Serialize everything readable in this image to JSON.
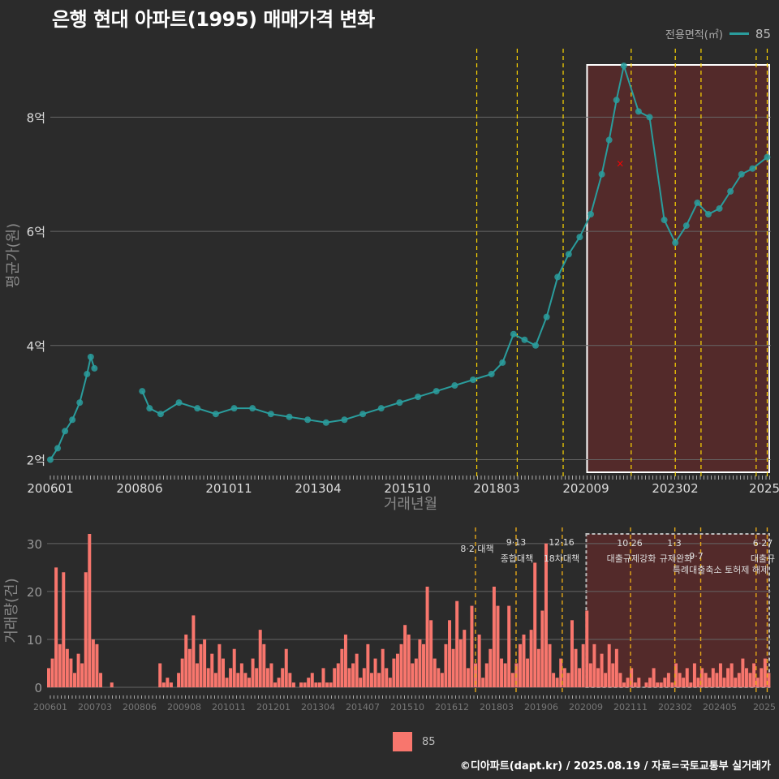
{
  "title": "은행 현대 아파트(1995) 매매가격 변화",
  "legend_top": {
    "title": "전용면적(㎡)",
    "value": "85"
  },
  "legend_bottom": {
    "value": "85"
  },
  "footer": "©디아파트(dapt.kr) / 2025.08.19 / 자료=국토교통부 실거래가",
  "colors": {
    "price": "#2a9d9d",
    "volume": "#f8766d",
    "policy": "#ffd700",
    "highlight_fill": "#5a2a2a",
    "marker": "#ff0000"
  },
  "chart_data": [
    {
      "type": "scatter",
      "title": "은행 현대 아파트(1995) 매매가격 변화",
      "xlabel": "거래년월",
      "ylabel": "평균가(원)",
      "x_ticks": [
        "200601",
        "200806",
        "201011",
        "201304",
        "201510",
        "201803",
        "202009",
        "202302",
        "2025"
      ],
      "y_ticks": [
        2,
        4,
        6,
        8
      ],
      "y_tick_labels": [
        "2억",
        "4억",
        "6억",
        "8억"
      ],
      "ylim": [
        1.95,
        9.2
      ],
      "xlim": [
        2006.0,
        2025.6
      ],
      "series": [
        {
          "name": "85",
          "points": [
            [
              2006.0,
              2.0
            ],
            [
              2006.2,
              2.2
            ],
            [
              2006.4,
              2.5
            ],
            [
              2006.6,
              2.7
            ],
            [
              2006.8,
              3.0
            ],
            [
              2007.0,
              3.5
            ],
            [
              2007.1,
              3.8
            ],
            [
              2007.2,
              3.6
            ],
            [
              2008.5,
              3.2
            ],
            [
              2008.7,
              2.9
            ],
            [
              2009.0,
              2.8
            ],
            [
              2009.5,
              3.0
            ],
            [
              2010.0,
              2.9
            ],
            [
              2010.5,
              2.8
            ],
            [
              2011.0,
              2.9
            ],
            [
              2011.5,
              2.9
            ],
            [
              2012.0,
              2.8
            ],
            [
              2012.5,
              2.75
            ],
            [
              2013.0,
              2.7
            ],
            [
              2013.5,
              2.65
            ],
            [
              2014.0,
              2.7
            ],
            [
              2014.5,
              2.8
            ],
            [
              2015.0,
              2.9
            ],
            [
              2015.5,
              3.0
            ],
            [
              2016.0,
              3.1
            ],
            [
              2016.5,
              3.2
            ],
            [
              2017.0,
              3.3
            ],
            [
              2017.5,
              3.4
            ],
            [
              2018.0,
              3.5
            ],
            [
              2018.3,
              3.7
            ],
            [
              2018.6,
              4.2
            ],
            [
              2018.9,
              4.1
            ],
            [
              2019.2,
              4.0
            ],
            [
              2019.5,
              4.5
            ],
            [
              2019.8,
              5.2
            ],
            [
              2020.1,
              5.6
            ],
            [
              2020.4,
              5.9
            ],
            [
              2020.7,
              6.3
            ],
            [
              2021.0,
              7.0
            ],
            [
              2021.2,
              7.6
            ],
            [
              2021.4,
              8.3
            ],
            [
              2021.6,
              8.9
            ],
            [
              2022.0,
              8.1
            ],
            [
              2022.3,
              8.0
            ],
            [
              2022.7,
              6.2
            ],
            [
              2023.0,
              5.8
            ],
            [
              2023.3,
              6.1
            ],
            [
              2023.6,
              6.5
            ],
            [
              2023.9,
              6.3
            ],
            [
              2024.2,
              6.4
            ],
            [
              2024.5,
              6.7
            ],
            [
              2024.8,
              7.0
            ],
            [
              2025.1,
              7.1
            ],
            [
              2025.5,
              7.3
            ]
          ]
        }
      ],
      "policy_lines_x": [
        2017.6,
        2018.7,
        2019.95,
        2021.8,
        2023.0,
        2023.7,
        2025.2,
        2025.5
      ],
      "highlight_x": [
        2020.6,
        2025.6
      ],
      "marker_x": [
        2021.5
      ],
      "marker_y": [
        7.2
      ]
    },
    {
      "type": "bar",
      "ylabel": "거래량(건)",
      "x_ticks": [
        "200601",
        "200703",
        "200806",
        "200908",
        "201011",
        "201201",
        "201304",
        "201407",
        "201510",
        "201612",
        "201803",
        "201906",
        "202009",
        "202111",
        "202302",
        "202405",
        "2025"
      ],
      "y_ticks": [
        0,
        10,
        20,
        30
      ],
      "ylim": [
        0,
        32
      ],
      "xlim": [
        2006.0,
        2025.6
      ],
      "series": [
        {
          "name": "85",
          "values": [
            4,
            6,
            25,
            9,
            24,
            8,
            6,
            3,
            7,
            5,
            24,
            32,
            10,
            9,
            3,
            0,
            0,
            1,
            0,
            0,
            0,
            0,
            0,
            0,
            0,
            0,
            0,
            0,
            0,
            0,
            5,
            1,
            2,
            1,
            0,
            3,
            6,
            11,
            8,
            15,
            5,
            9,
            10,
            4,
            7,
            3,
            9,
            6,
            2,
            4,
            8,
            3,
            5,
            3,
            2,
            6,
            4,
            12,
            9,
            4,
            5,
            1,
            2,
            4,
            8,
            3,
            1,
            0,
            1,
            1,
            2,
            3,
            1,
            1,
            4,
            1,
            1,
            4,
            5,
            8,
            11,
            4,
            5,
            7,
            2,
            4,
            9,
            3,
            6,
            3,
            8,
            4,
            2,
            6,
            7,
            9,
            13,
            11,
            5,
            6,
            10,
            9,
            21,
            14,
            6,
            4,
            3,
            9,
            14,
            8,
            18,
            10,
            12,
            4,
            17,
            5,
            11,
            2,
            5,
            8,
            21,
            17,
            6,
            5,
            17,
            3,
            5,
            9,
            11,
            6,
            12,
            26,
            8,
            16,
            30,
            9,
            3,
            2,
            6,
            4,
            3,
            14,
            8,
            4,
            9,
            16,
            5,
            9,
            4,
            7,
            3,
            9,
            5,
            8,
            3,
            1,
            2,
            4,
            1,
            2,
            0,
            1,
            2,
            4,
            1,
            1,
            2,
            3,
            1,
            5,
            3,
            2,
            4,
            1,
            5,
            2,
            4,
            3,
            2,
            4,
            3,
            5,
            2,
            4,
            5,
            2,
            3,
            6,
            4,
            3,
            5,
            2,
            4,
            6,
            3
          ]
        }
      ],
      "policy_lines_x": [
        2017.6,
        2018.7,
        2019.95,
        2021.8,
        2023.0,
        2023.7,
        2025.2,
        2025.5
      ],
      "highlight_x": [
        2020.6,
        2025.6
      ],
      "policy_labels_top": [
        "8·2 대책",
        "9·13",
        "종합대책",
        "12·16",
        "18차대책",
        "10·26",
        "대출규제강화",
        "1·3",
        "규제완화",
        "9·7",
        "특례대출축소 토허제 해제",
        "6·27",
        "대출규"
      ]
    }
  ]
}
